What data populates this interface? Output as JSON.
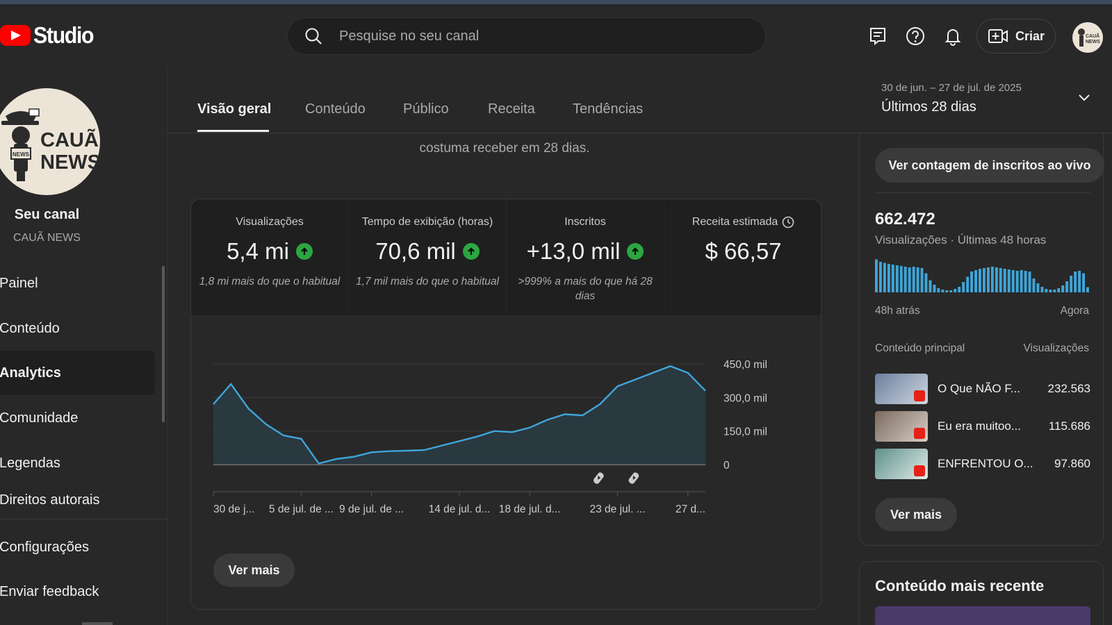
{
  "app": {
    "logo_text": "Studio"
  },
  "search": {
    "placeholder": "Pesquise no seu canal"
  },
  "header": {
    "create_label": "Criar",
    "avatar_text": "CAUÃ NEWS"
  },
  "sidebar": {
    "channel_title": "Seu canal",
    "channel_name": "CAUÃ NEWS",
    "avatar_line1": "CAUÃ",
    "avatar_line2": "NEWS",
    "items": [
      {
        "label": "Painel"
      },
      {
        "label": "Conteúdo"
      },
      {
        "label": "Analytics",
        "active": true
      },
      {
        "label": "Comunidade"
      },
      {
        "label": "Legendas"
      },
      {
        "label": "Direitos autorais"
      }
    ],
    "bottom_items": [
      {
        "label": "Configurações"
      },
      {
        "label": "Enviar feedback"
      }
    ]
  },
  "tabs": [
    {
      "label": "Visão geral",
      "active": true
    },
    {
      "label": "Conteúdo"
    },
    {
      "label": "Público"
    },
    {
      "label": "Receita"
    },
    {
      "label": "Tendências"
    }
  ],
  "date_range": {
    "sub": "30 de jun. – 27 de jul. de 2025",
    "main": "Últimos 28 dias"
  },
  "intro_text": "costuma receber em 28 dias.",
  "metrics": [
    {
      "label": "Visualizações",
      "value": "5,4 mi",
      "trend": "up",
      "note": "1,8 mi mais do que o habitual"
    },
    {
      "label": "Tempo de exibição (horas)",
      "value": "70,6 mil",
      "trend": "up",
      "note": "1,7 mil mais do que o habitual"
    },
    {
      "label": "Inscritos",
      "value": "+13,0 mil",
      "trend": "up",
      "note": ">999% a mais do que há 28 dias"
    },
    {
      "label": "Receita estimada",
      "value": "$ 66,57",
      "icon": "clock-icon"
    }
  ],
  "chart_data": {
    "type": "area",
    "series": [
      {
        "values": [
          270000,
          360000,
          250000,
          180000,
          130000,
          115000,
          5000,
          25000,
          35000,
          55000,
          60000,
          62000,
          65000,
          85000,
          105000,
          125000,
          150000,
          145000,
          165000,
          200000,
          225000,
          220000,
          270000,
          350000,
          380000,
          410000,
          440000,
          410000,
          330000
        ]
      }
    ],
    "y_ticks": [
      "450,0 mil",
      "300,0 mil",
      "150,0 mil",
      "0"
    ],
    "ylim": [
      0,
      450000
    ],
    "x_tick_labels": [
      "30 de j...",
      "5 de jul. de ...",
      "9 de jul. de ...",
      "14 de jul. d...",
      "18 de jul. d...",
      "23 de jul. ...",
      "27 d..."
    ],
    "short_markers": [
      22,
      24
    ],
    "colors": {
      "line": "#3ea6d9",
      "fill": "#2b3d48",
      "grid": "#3a3a3a"
    }
  },
  "card": {
    "more_label": "Ver mais"
  },
  "realtime": {
    "live_button": "Ver contagem de inscritos ao vivo",
    "value": "662.472",
    "label": "Visualizações · Últimas 48 horas",
    "bars": [
      0.95,
      0.88,
      0.85,
      0.82,
      0.8,
      0.78,
      0.76,
      0.74,
      0.72,
      0.74,
      0.72,
      0.7,
      0.55,
      0.35,
      0.22,
      0.12,
      0.08,
      0.06,
      0.06,
      0.1,
      0.16,
      0.3,
      0.45,
      0.6,
      0.64,
      0.68,
      0.7,
      0.72,
      0.74,
      0.72,
      0.7,
      0.68,
      0.66,
      0.64,
      0.62,
      0.64,
      0.62,
      0.6,
      0.4,
      0.26,
      0.16,
      0.1,
      0.08,
      0.08,
      0.12,
      0.2,
      0.32,
      0.48,
      0.6,
      0.62,
      0.55,
      0.15
    ],
    "left_label": "48h atrás",
    "right_label": "Agora",
    "top_content_label": "Conteúdo principal",
    "views_label": "Visualizações",
    "rows": [
      {
        "title": "O Que NÃO F...",
        "views": "232.563"
      },
      {
        "title": "Eu era muitoo...",
        "views": "115.686"
      },
      {
        "title": "ENFRENTOU O...",
        "views": "97.860"
      }
    ],
    "more_label": "Ver mais",
    "bar_color": "#3ea6d9"
  },
  "recent": {
    "title": "Conteúdo mais recente"
  }
}
